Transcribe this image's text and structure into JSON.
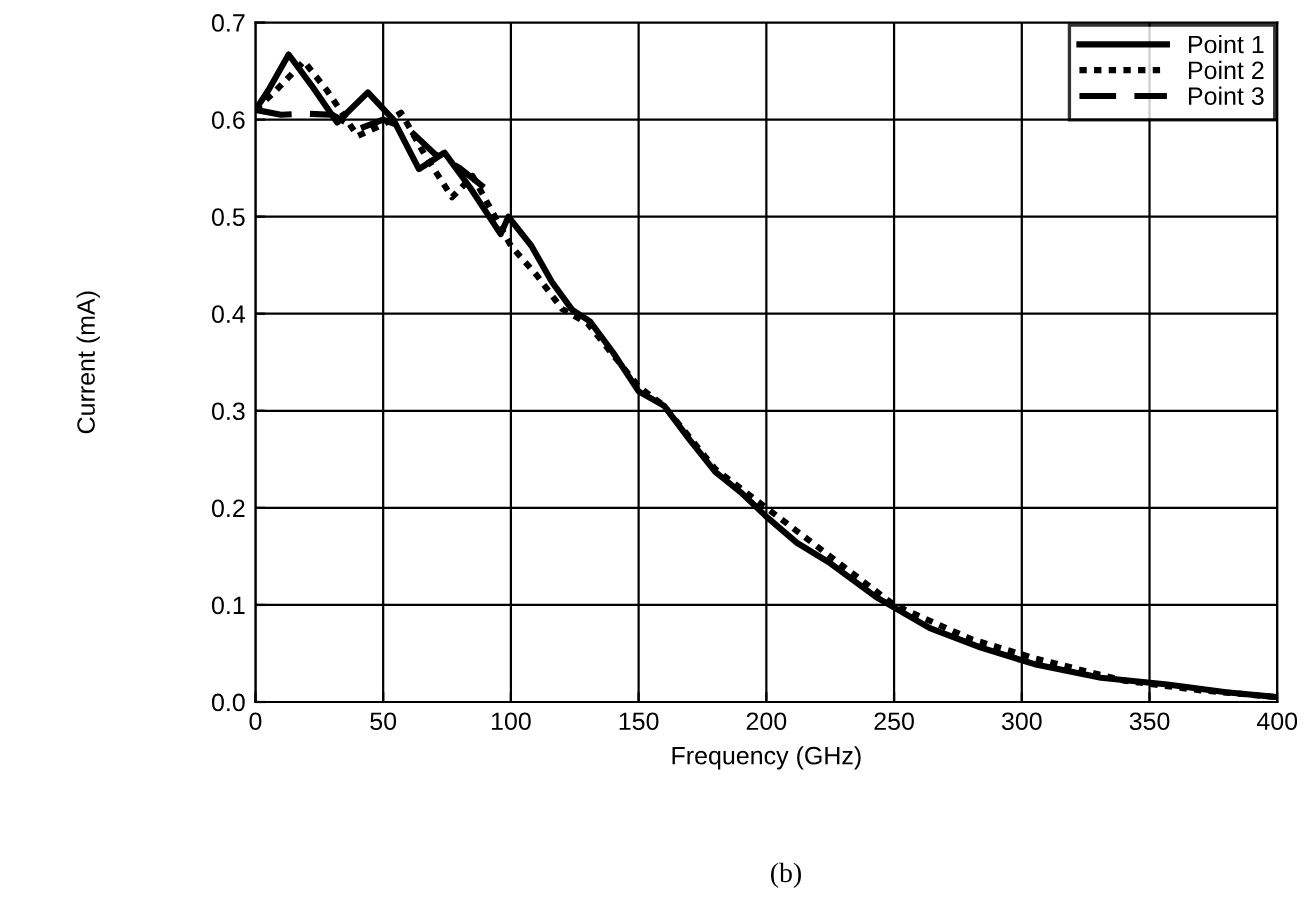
{
  "chart_data": {
    "type": "line",
    "xlabel": "Frequency (GHz)",
    "ylabel": "Current (mA)",
    "annotations": [
      "(b)"
    ],
    "xlim": [
      0,
      400
    ],
    "xticks": [
      0,
      50,
      100,
      150,
      200,
      250,
      300,
      350,
      400
    ],
    "ylim": [
      0,
      0.7
    ],
    "yticks": [
      {
        "value": 0,
        "label": "0.0"
      },
      0.1,
      0.2,
      0.3,
      0.4,
      0.5,
      0.6,
      0.7
    ],
    "grid": true,
    "legend": "top right",
    "series": [
      {
        "name": "Point 1",
        "color": "#000000",
        "line_style": "solid",
        "x": [
          0,
          5,
          13,
          22,
          32,
          44,
          54,
          64,
          74,
          84,
          96,
          99,
          108,
          116,
          124,
          131,
          140,
          150,
          160,
          170,
          180,
          190,
          200,
          212,
          225,
          243,
          264,
          284,
          305,
          331,
          357,
          380,
          400
        ],
        "values": [
          0.61,
          0.63,
          0.667,
          0.635,
          0.597,
          0.628,
          0.6,
          0.549,
          0.566,
          0.53,
          0.482,
          0.5,
          0.47,
          0.433,
          0.404,
          0.392,
          0.36,
          0.32,
          0.305,
          0.27,
          0.237,
          0.216,
          0.191,
          0.164,
          0.143,
          0.108,
          0.076,
          0.056,
          0.039,
          0.025,
          0.018,
          0.01,
          0.005
        ]
      },
      {
        "name": "Point 2",
        "color": "#000000",
        "line_style": "dotted",
        "x": [
          0,
          8,
          19,
          28,
          40,
          50,
          57,
          66,
          77,
          85,
          100,
          110,
          120,
          130,
          150,
          160,
          180,
          200,
          225,
          250,
          280,
          305,
          340,
          370,
          400
        ],
        "values": [
          0.61,
          0.63,
          0.66,
          0.63,
          0.583,
          0.595,
          0.607,
          0.565,
          0.52,
          0.542,
          0.47,
          0.44,
          0.405,
          0.39,
          0.325,
          0.305,
          0.24,
          0.2,
          0.15,
          0.1,
          0.065,
          0.045,
          0.022,
          0.012,
          0.005
        ]
      },
      {
        "name": "Point 3",
        "color": "#000000",
        "line_style": "dashed",
        "x": [
          0,
          10,
          20,
          30,
          40,
          50,
          60,
          70,
          80,
          91
        ],
        "values": [
          0.61,
          0.605,
          0.606,
          0.605,
          0.59,
          0.6,
          0.59,
          0.565,
          0.55,
          0.527
        ]
      }
    ]
  }
}
